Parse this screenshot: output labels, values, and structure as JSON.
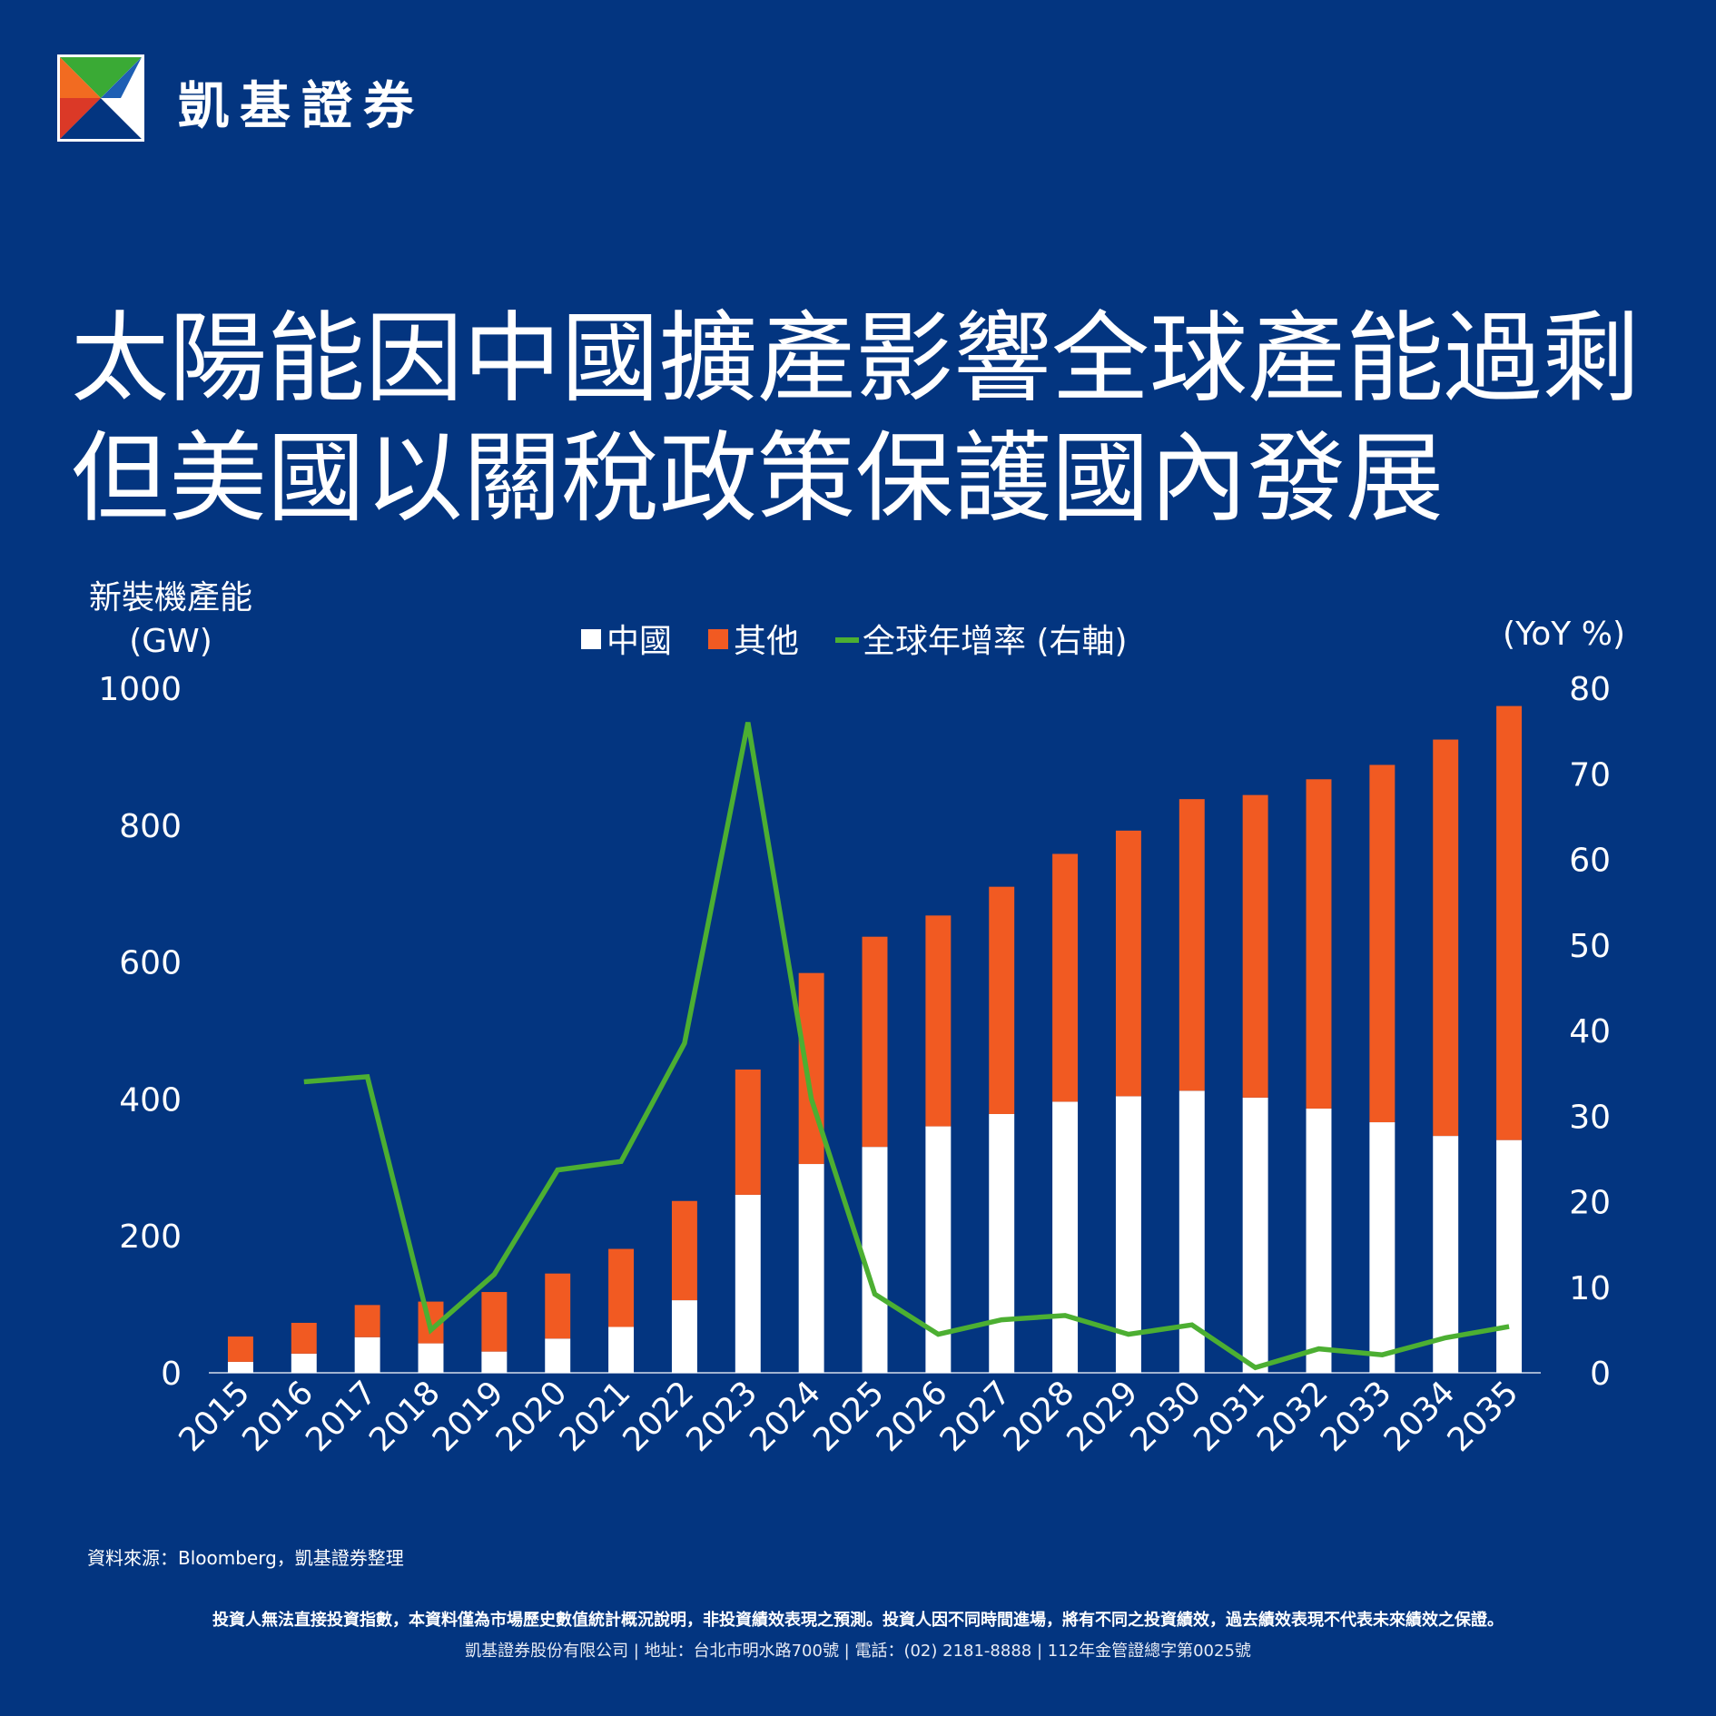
{
  "header": {
    "brand_name": "凱基證券",
    "logo_icon": "kgi-logo-icon"
  },
  "headline": {
    "line1": "太陽能因中國擴產影響全球產能過剩",
    "line2": "但美國以關稅政策保護國內發展"
  },
  "colors": {
    "background": "#033580",
    "china": "#ffffff",
    "other": "#f15a22",
    "growth_line": "#4caf32"
  },
  "chart_data": {
    "type": "bar",
    "stacked": true,
    "y_left_label_line1": "新裝機產能",
    "y_left_label_line2": "(GW)",
    "y_right_label": "(YoY %)",
    "ylim_left": [
      0,
      1000
    ],
    "ylim_right": [
      0,
      80
    ],
    "y_left_ticks": [
      "0",
      "200",
      "400",
      "600",
      "800",
      "1000"
    ],
    "y_right_ticks": [
      "0",
      "10",
      "20",
      "30",
      "40",
      "50",
      "60",
      "70",
      "80"
    ],
    "legend_position": "top-center",
    "grid": false,
    "categories": [
      "2015",
      "2016",
      "2017",
      "2018",
      "2019",
      "2020",
      "2021",
      "2022",
      "2023",
      "2024",
      "2025",
      "2026",
      "2027",
      "2028",
      "2029",
      "2030",
      "2031",
      "2032",
      "2033",
      "2034",
      "2035"
    ],
    "series": [
      {
        "name": "中國",
        "type": "bar",
        "axis": "left",
        "values": [
          16,
          28,
          52,
          43,
          31,
          50,
          67,
          106,
          260,
          305,
          330,
          360,
          378,
          396,
          404,
          412,
          402,
          386,
          366,
          346,
          340
        ]
      },
      {
        "name": "其他",
        "type": "bar",
        "axis": "left",
        "values": [
          37,
          45,
          47,
          61,
          87,
          95,
          114,
          145,
          183,
          279,
          307,
          308,
          332,
          362,
          388,
          426,
          442,
          481,
          522,
          579,
          634
        ]
      },
      {
        "name": "全球年增率 (右軸)",
        "type": "line",
        "axis": "right",
        "values": [
          null,
          34,
          34.6,
          5,
          11.5,
          23.7,
          24.7,
          38.5,
          76,
          32,
          9.2,
          4.5,
          6.2,
          6.7,
          4.5,
          5.6,
          0.6,
          2.8,
          2.1,
          4.1,
          5.4
        ]
      }
    ]
  },
  "source": "資料來源：Bloomberg，凱基證券整理",
  "footer": {
    "disclaimer": "投資人無法直接投資指數，本資料僅為市場歷史數值統計概況說明，非投資績效表現之預測。投資人因不同時間進場，將有不同之投資績效，過去績效表現不代表未來績效之保證。",
    "company_info": "凱基證券股份有限公司 | 地址：台北市明水路700號 | 電話：(02) 2181-8888 | 112年金管證總字第0025號"
  }
}
